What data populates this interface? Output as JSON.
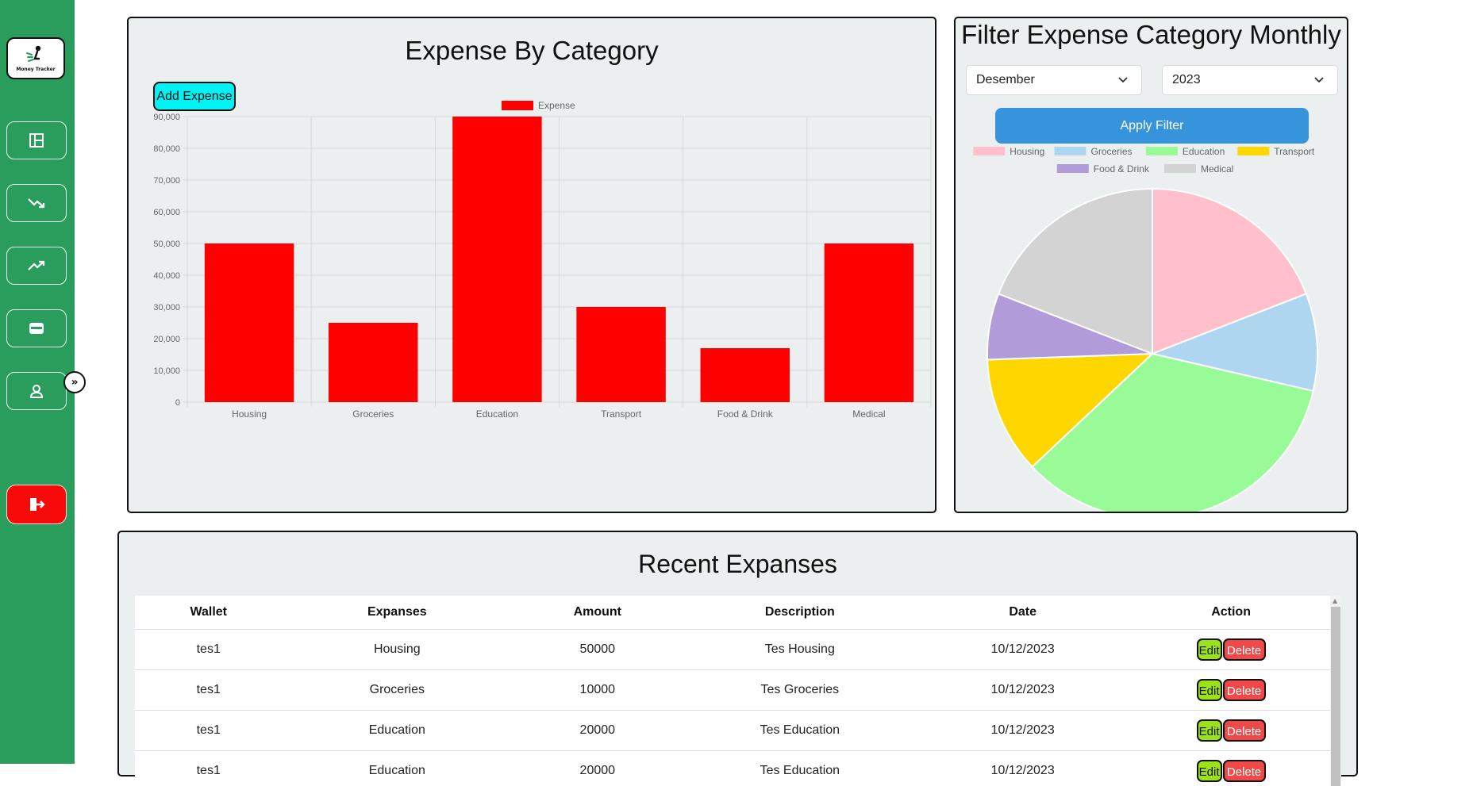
{
  "sidebar": {
    "logo_text": "Money Tracker",
    "nav_icons": [
      "dashboard-icon",
      "trending-down-icon",
      "trending-up-icon",
      "wallet-icon",
      "user-icon"
    ],
    "expand_label": "»",
    "logout_icon": "logout-icon",
    "logout_color": "#f80a0a",
    "bg_color": "#2a9d5c"
  },
  "bar_panel": {
    "title": "Expense By Category",
    "add_button": "Add Expense"
  },
  "pie_panel": {
    "title": "Filter Expense Category Monthly",
    "month_select": "Desember",
    "year_select": "2023",
    "apply_button": "Apply Filter"
  },
  "chart_data": [
    {
      "type": "bar",
      "categories": [
        "Housing",
        "Groceries",
        "Education",
        "Transport",
        "Food & Drink",
        "Medical"
      ],
      "series": [
        {
          "name": "Expense",
          "values": [
            50000,
            25000,
            90000,
            30000,
            17000,
            50000
          ],
          "color": "#ff0000"
        }
      ],
      "ylim": [
        0,
        90000
      ],
      "yticks": [
        0,
        10000,
        20000,
        30000,
        40000,
        50000,
        60000,
        70000,
        80000,
        90000
      ],
      "ytick_labels": [
        "0",
        "10,000",
        "20,000",
        "30,000",
        "40,000",
        "50,000",
        "60,000",
        "70,000",
        "80,000",
        "90,000"
      ],
      "grid": true,
      "legend": "top-center"
    },
    {
      "type": "pie",
      "labels": [
        "Housing",
        "Groceries",
        "Education",
        "Transport",
        "Food & Drink",
        "Medical"
      ],
      "values": [
        50000,
        25000,
        90000,
        30000,
        17000,
        50000
      ],
      "colors": [
        "#ffc0cb",
        "#aed6f1",
        "#98fb98",
        "#ffd700",
        "#b19cd9",
        "#d3d3d3"
      ],
      "legend": "top"
    }
  ],
  "table": {
    "title": "Recent Expanses",
    "headers": [
      "Wallet",
      "Expanses",
      "Amount",
      "Description",
      "Date",
      "Action"
    ],
    "rows": [
      {
        "wallet": "tes1",
        "expanses": "Housing",
        "amount": "50000",
        "description": "Tes Housing",
        "date": "10/12/2023"
      },
      {
        "wallet": "tes1",
        "expanses": "Groceries",
        "amount": "10000",
        "description": "Tes Groceries",
        "date": "10/12/2023"
      },
      {
        "wallet": "tes1",
        "expanses": "Education",
        "amount": "20000",
        "description": "Tes Education",
        "date": "10/12/2023"
      },
      {
        "wallet": "tes1",
        "expanses": "Education",
        "amount": "20000",
        "description": "Tes Education",
        "date": "10/12/2023"
      }
    ],
    "edit_label": "Edit",
    "delete_label": "Delete"
  }
}
